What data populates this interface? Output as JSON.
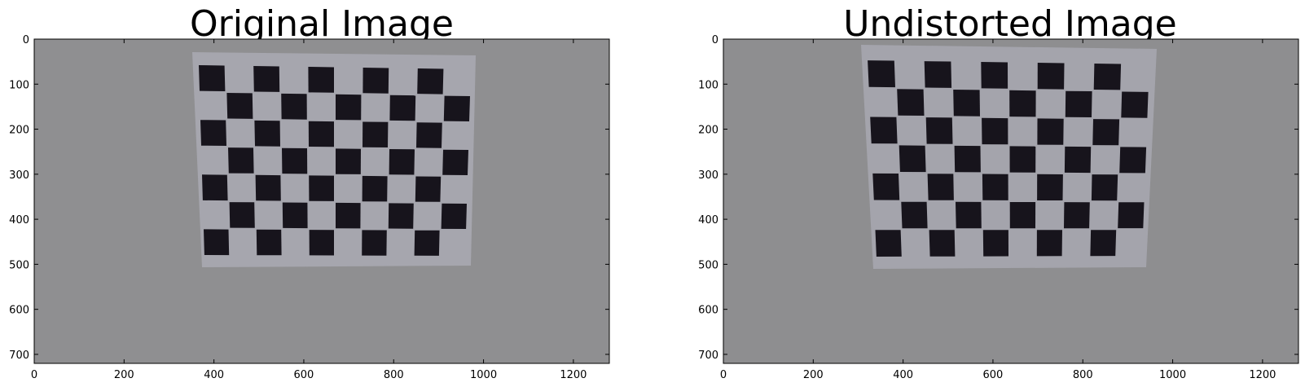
{
  "panels": [
    {
      "title": "Original Image",
      "x_ticks": [
        "0",
        "200",
        "400",
        "600",
        "800",
        "1000",
        "1200"
      ],
      "y_ticks": [
        "0",
        "100",
        "200",
        "300",
        "400",
        "500",
        "600",
        "700"
      ],
      "image_content": "checkerboard-original",
      "colors": {
        "background": "#8f8f91",
        "paper": "#a6a6ae",
        "square": "#17141c"
      }
    },
    {
      "title": "Undistorted Image",
      "x_ticks": [
        "0",
        "200",
        "400",
        "600",
        "800",
        "1000",
        "1200"
      ],
      "y_ticks": [
        "0",
        "100",
        "200",
        "300",
        "400",
        "500",
        "600",
        "700"
      ],
      "image_content": "checkerboard-undistorted",
      "colors": {
        "background": "#8e8e90",
        "paper": "#a4a4ac",
        "square": "#17141c"
      }
    }
  ]
}
